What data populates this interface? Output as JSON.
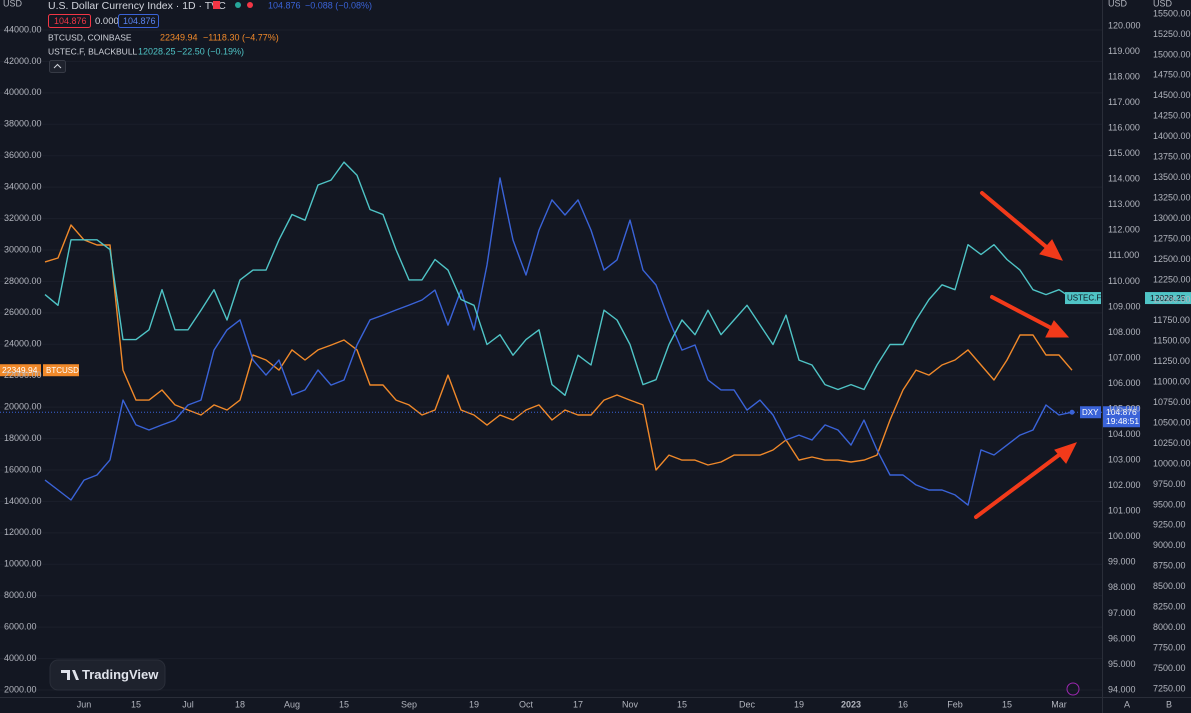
{
  "header": {
    "title": "U.S. Dollar Currency Index · 1D · TVC",
    "dxy_change": "−0.088 (−0.08%)",
    "zero": "0.000",
    "btc_source": "BTCUSD, COINBASE",
    "btc_change": "−1118.30 (−4.77%)",
    "ustec_source": "USTEC.F, BLACKBULL",
    "ustec_change": "−22.50 (−0.19%)",
    "countdown": "19:48:51",
    "currency": "USD",
    "watermark": "TradingView",
    "scale_buttons": [
      "A",
      "B"
    ]
  },
  "chart_data": {
    "type": "line",
    "grid": true,
    "categories": [
      null,
      null,
      null,
      "Jun",
      null,
      null,
      null,
      "15",
      null,
      null,
      null,
      "Jul",
      null,
      null,
      null,
      "18",
      null,
      null,
      null,
      "Aug",
      null,
      null,
      null,
      "15",
      null,
      null,
      null,
      null,
      "Sep",
      null,
      null,
      null,
      null,
      "19",
      null,
      null,
      null,
      "Oct",
      null,
      null,
      null,
      "17",
      null,
      null,
      null,
      "Nov",
      null,
      null,
      null,
      "15",
      null,
      null,
      null,
      null,
      "Dec",
      null,
      null,
      null,
      "19",
      null,
      null,
      null,
      "2023",
      null,
      null,
      null,
      "16",
      null,
      null,
      null,
      "Feb",
      null,
      null,
      null,
      "15",
      null,
      null,
      null,
      "Mar",
      null
    ],
    "ylim": [
      2000,
      44000
    ],
    "yticks": [
      {
        "value": 2000,
        "label": "2000.00"
      },
      {
        "value": 4000,
        "label": "4000.00"
      },
      {
        "value": 6000,
        "label": "6000.00"
      },
      {
        "value": 8000,
        "label": "8000.00"
      },
      {
        "value": 10000,
        "label": "10000.00"
      },
      {
        "value": 12000,
        "label": "12000.00"
      },
      {
        "value": 14000,
        "label": "14000.00"
      },
      {
        "value": 16000,
        "label": "16000.00"
      },
      {
        "value": 18000,
        "label": "18000.00"
      },
      {
        "value": 20000,
        "label": "20000.00"
      },
      {
        "value": 22000,
        "label": "22000.00"
      },
      {
        "value": 24000,
        "label": "24000.00"
      },
      {
        "value": 26000,
        "label": "26000.00"
      },
      {
        "value": 28000,
        "label": "28000.00"
      },
      {
        "value": 30000,
        "label": "30000.00"
      },
      {
        "value": 32000,
        "label": "32000.00"
      },
      {
        "value": 34000,
        "label": "34000.00"
      },
      {
        "value": 36000,
        "label": "36000.00"
      },
      {
        "value": 38000,
        "label": "38000.00"
      },
      {
        "value": 40000,
        "label": "40000.00"
      },
      {
        "value": 42000,
        "label": "42000.00"
      },
      {
        "value": 44000,
        "label": "44000.00"
      }
    ],
    "y2lim": [
      94,
      120
    ],
    "y2ticks": [
      {
        "value": 94,
        "label": "94.000"
      },
      {
        "value": 95,
        "label": "95.000"
      },
      {
        "value": 96,
        "label": "96.000"
      },
      {
        "value": 97,
        "label": "97.000"
      },
      {
        "value": 98,
        "label": "98.000"
      },
      {
        "value": 99,
        "label": "99.000"
      },
      {
        "value": 100,
        "label": "100.000"
      },
      {
        "value": 101,
        "label": "101.000"
      },
      {
        "value": 102,
        "label": "102.000"
      },
      {
        "value": 103,
        "label": "103.000"
      },
      {
        "value": 104,
        "label": "104.000"
      },
      {
        "value": 105,
        "label": "105.000"
      },
      {
        "value": 106,
        "label": "106.000"
      },
      {
        "value": 107,
        "label": "107.000"
      },
      {
        "value": 108,
        "label": "108.000"
      },
      {
        "value": 109,
        "label": "109.000"
      },
      {
        "value": 110,
        "label": "110.000"
      },
      {
        "value": 111,
        "label": "111.000"
      },
      {
        "value": 112,
        "label": "112.000"
      },
      {
        "value": 113,
        "label": "113.000"
      },
      {
        "value": 114,
        "label": "114.000"
      },
      {
        "value": 115,
        "label": "115.000"
      },
      {
        "value": 116,
        "label": "116.000"
      },
      {
        "value": 117,
        "label": "117.000"
      },
      {
        "value": 118,
        "label": "118.000"
      },
      {
        "value": 119,
        "label": "119.000"
      },
      {
        "value": 120,
        "label": "120.000"
      }
    ],
    "y3lim": [
      7250,
      15500
    ],
    "y3ticks": [
      {
        "value": 7250,
        "label": "7250.00"
      },
      {
        "value": 7500,
        "label": "7500.00"
      },
      {
        "value": 7750,
        "label": "7750.00"
      },
      {
        "value": 8000,
        "label": "8000.00"
      },
      {
        "value": 8250,
        "label": "8250.00"
      },
      {
        "value": 8500,
        "label": "8500.00"
      },
      {
        "value": 8750,
        "label": "8750.00"
      },
      {
        "value": 9000,
        "label": "9000.00"
      },
      {
        "value": 9250,
        "label": "9250.00"
      },
      {
        "value": 9500,
        "label": "9500.00"
      },
      {
        "value": 9750,
        "label": "9750.00"
      },
      {
        "value": 10000,
        "label": "10000.00"
      },
      {
        "value": 10250,
        "label": "10250.00"
      },
      {
        "value": 10500,
        "label": "10500.00"
      },
      {
        "value": 10750,
        "label": "10750.00"
      },
      {
        "value": 11000,
        "label": "11000.00"
      },
      {
        "value": 11250,
        "label": "11250.00"
      },
      {
        "value": 11500,
        "label": "11500.00"
      },
      {
        "value": 11750,
        "label": "11750.00"
      },
      {
        "value": 12000,
        "label": "12000.00"
      },
      {
        "value": 12250,
        "label": "12250.00"
      },
      {
        "value": 12500,
        "label": "12500.00"
      },
      {
        "value": 12750,
        "label": "12750.00"
      },
      {
        "value": 13000,
        "label": "13000.00"
      },
      {
        "value": 13250,
        "label": "13250.00"
      },
      {
        "value": 13500,
        "label": "13500.00"
      },
      {
        "value": 13750,
        "label": "13750.00"
      },
      {
        "value": 14000,
        "label": "14000.00"
      },
      {
        "value": 14250,
        "label": "14250.00"
      },
      {
        "value": 14500,
        "label": "14500.00"
      },
      {
        "value": 14750,
        "label": "14750.00"
      },
      {
        "value": 15000,
        "label": "15000.00"
      },
      {
        "value": 15250,
        "label": "15250.00"
      },
      {
        "value": 15500,
        "label": "15500.00"
      }
    ],
    "series": [
      {
        "name": "BTCUSD",
        "color": "#f0892a",
        "axis": "y",
        "values": [
          29240,
          29490,
          31590,
          30640,
          30320,
          30320,
          22360,
          20450,
          20450,
          21090,
          20140,
          19820,
          19500,
          20140,
          19820,
          20450,
          23320,
          23000,
          22360,
          23640,
          23000,
          23640,
          23950,
          24270,
          23640,
          21410,
          21410,
          20450,
          20140,
          19500,
          19820,
          22040,
          19820,
          19500,
          18860,
          19500,
          19180,
          19820,
          20140,
          19180,
          19820,
          19500,
          19500,
          20450,
          20770,
          20450,
          20140,
          16000,
          16950,
          16630,
          16630,
          16320,
          16510,
          16950,
          16950,
          16950,
          17270,
          17910,
          16630,
          16830,
          16630,
          16630,
          16510,
          16630,
          16950,
          19180,
          21090,
          22360,
          22040,
          22680,
          23000,
          23640,
          22680,
          21730,
          23000,
          24590,
          24590,
          23320,
          23320,
          22349.94
        ]
      },
      {
        "name": "DXY",
        "color": "#3a63d8",
        "axis": "y2",
        "values": [
          102.22,
          101.83,
          101.44,
          102.22,
          102.42,
          103.01,
          105.35,
          104.38,
          104.18,
          104.38,
          104.57,
          105.16,
          105.35,
          107.31,
          108.1,
          108.49,
          106.92,
          106.33,
          106.92,
          105.55,
          105.75,
          106.53,
          105.94,
          106.14,
          107.51,
          108.49,
          108.68,
          108.88,
          109.07,
          109.27,
          109.66,
          108.29,
          109.66,
          108.1,
          110.64,
          114.05,
          111.62,
          110.25,
          112.01,
          113.19,
          112.6,
          113.19,
          112.01,
          110.44,
          110.84,
          112.4,
          110.44,
          109.86,
          108.49,
          107.31,
          107.51,
          106.14,
          105.75,
          105.75,
          104.96,
          105.35,
          104.77,
          103.79,
          103.98,
          103.79,
          104.38,
          104.18,
          103.59,
          104.57,
          103.4,
          102.42,
          102.42,
          102.03,
          101.83,
          101.83,
          101.64,
          101.24,
          103.4,
          103.2,
          103.59,
          103.98,
          104.18,
          105.16,
          104.77,
          104.876
        ]
      },
      {
        "name": "USTEC.F",
        "color": "#4fc4c6",
        "axis": "y3",
        "values": [
          12070,
          11940,
          12740,
          12740,
          12740,
          12620,
          11520,
          11520,
          11640,
          12130,
          11640,
          11640,
          11880,
          12130,
          11760,
          12250,
          12370,
          12370,
          12740,
          13050,
          12980,
          13410,
          13470,
          13690,
          13530,
          13110,
          13050,
          12620,
          12250,
          12250,
          12500,
          12370,
          12010,
          11940,
          11460,
          11580,
          11330,
          11520,
          11640,
          10970,
          10840,
          11330,
          11210,
          11880,
          11760,
          11460,
          10970,
          11030,
          11460,
          11760,
          11580,
          11880,
          11580,
          11760,
          11940,
          11700,
          11460,
          11820,
          11270,
          11210,
          10970,
          10910,
          10970,
          10910,
          11210,
          11460,
          11460,
          11760,
          12010,
          12190,
          12130,
          12680,
          12560,
          12680,
          12500,
          12370,
          12130,
          12070,
          12130,
          12028.25
        ]
      }
    ]
  }
}
